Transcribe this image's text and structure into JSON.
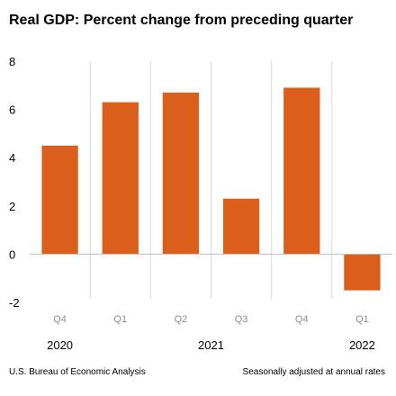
{
  "title": "Real GDP:  Percent change from preceding quarter",
  "source": "U.S. Bureau of Economic Analysis",
  "note": "Seasonally adjusted at annual rates",
  "colors": {
    "bar": "#d95f1a",
    "grid": "#d9d9d9",
    "axis": "#bfbfbf"
  },
  "chart_data": {
    "type": "bar",
    "title": "Real GDP:  Percent change from preceding quarter",
    "categories": [
      "Q4",
      "Q1",
      "Q2",
      "Q3",
      "Q4",
      "Q1"
    ],
    "values": [
      4.5,
      6.3,
      6.7,
      2.3,
      6.9,
      -1.5
    ],
    "years": [
      {
        "label": "2020",
        "start": 0,
        "end": 0
      },
      {
        "label": "2021",
        "start": 1,
        "end": 4
      },
      {
        "label": "2022",
        "start": 5,
        "end": 5
      }
    ],
    "ylim": [
      -2,
      8
    ],
    "yticks": [
      "8",
      "6",
      "4",
      "2",
      "0",
      "-2"
    ],
    "grid": "vertical separators between categories",
    "legend": "none"
  }
}
